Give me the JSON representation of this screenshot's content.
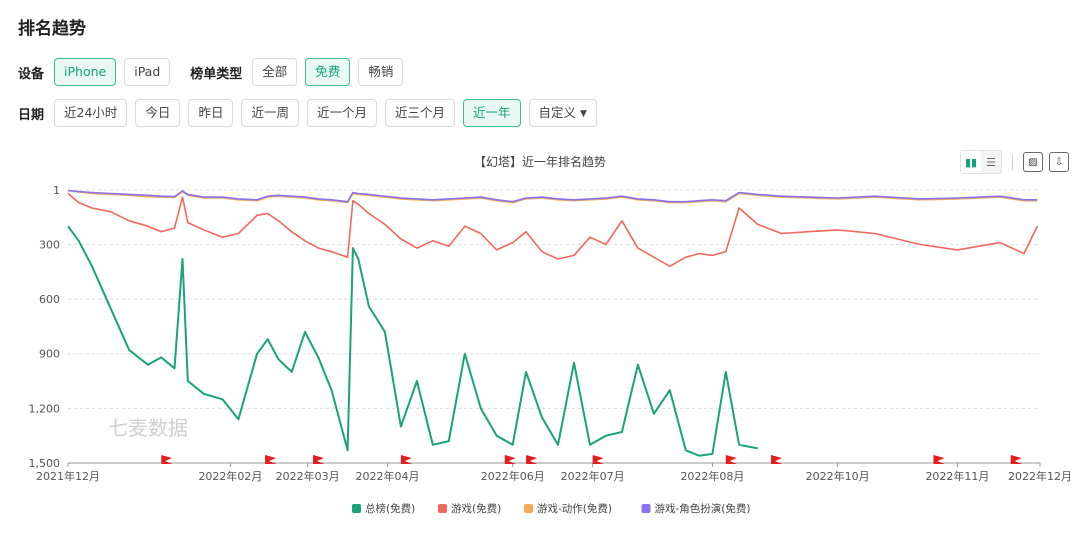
{
  "header": {
    "title": "排名趋势"
  },
  "device": {
    "label": "设备",
    "options": [
      "iPhone",
      "iPad"
    ],
    "selected": "iPhone"
  },
  "chart_type": {
    "label": "榜单类型",
    "options": [
      "全部",
      "免费",
      "畅销"
    ],
    "selected": "免费"
  },
  "date": {
    "label": "日期",
    "options": [
      "近24小时",
      "今日",
      "昨日",
      "近一周",
      "近一个月",
      "近三个月",
      "近一年",
      "自定义"
    ],
    "selected": "近一年"
  },
  "watermark": "七麦数据",
  "colors": {
    "accent": "#16a37b",
    "total": "#1aa37a",
    "game": "#f0695f",
    "action": "#f5aa5a",
    "rpg": "#8a72ee"
  },
  "chart_data": {
    "type": "line",
    "title": "【幻塔】近一年排名趋势",
    "x_ticks": [
      "2021年12月",
      "2022年02月",
      "2022年03月",
      "2022年04月",
      "2022年06月",
      "2022年07月",
      "2022年08月",
      "2022年10月",
      "2022年11月",
      "2022年12月"
    ],
    "y_ticks": [
      "1",
      "300",
      "600",
      "900",
      "1,200",
      "1,500"
    ],
    "ylim": [
      1500,
      1
    ],
    "y_inverted": true,
    "grid": true,
    "legend_position": "bottom",
    "markers": "red flags along the x-axis",
    "x": [
      "2021-12-16",
      "2021-12-20",
      "2021-12-25",
      "2022-01-01",
      "2022-01-08",
      "2022-01-15",
      "2022-01-20",
      "2022-01-25",
      "2022-01-28",
      "2022-01-30",
      "2022-02-05",
      "2022-02-12",
      "2022-02-18",
      "2022-02-25",
      "2022-03-01",
      "2022-03-05",
      "2022-03-10",
      "2022-03-15",
      "2022-03-20",
      "2022-03-25",
      "2022-03-31",
      "2022-04-02",
      "2022-04-04",
      "2022-04-08",
      "2022-04-14",
      "2022-04-20",
      "2022-04-26",
      "2022-05-02",
      "2022-05-08",
      "2022-05-14",
      "2022-05-20",
      "2022-05-26",
      "2022-06-01",
      "2022-06-06",
      "2022-06-12",
      "2022-06-18",
      "2022-06-24",
      "2022-06-30",
      "2022-07-06",
      "2022-07-12",
      "2022-07-18",
      "2022-07-24",
      "2022-07-30",
      "2022-08-05",
      "2022-08-10",
      "2022-08-15",
      "2022-08-20",
      "2022-08-25",
      "2022-09-01",
      "2022-09-10",
      "2022-09-20",
      "2022-10-01",
      "2022-10-15",
      "2022-11-01",
      "2022-11-15",
      "2022-12-01",
      "2022-12-10",
      "2022-12-15"
    ],
    "series": [
      {
        "name": "总榜(免费)",
        "values": [
          200,
          280,
          420,
          650,
          880,
          960,
          920,
          980,
          380,
          1050,
          1120,
          1150,
          1260,
          900,
          820,
          930,
          1000,
          780,
          920,
          1100,
          1430,
          320,
          380,
          640,
          780,
          1300,
          1050,
          1400,
          1380,
          900,
          1200,
          1350,
          1400,
          1000,
          1250,
          1400,
          950,
          1400,
          1350,
          1330,
          960,
          1230,
          1100,
          1430,
          1460,
          1450,
          1000,
          1400,
          1420,
          null,
          null,
          null,
          null,
          null,
          null,
          null,
          null,
          null
        ]
      },
      {
        "name": "游戏(免费)",
        "values": [
          20,
          70,
          100,
          120,
          170,
          200,
          230,
          210,
          40,
          180,
          220,
          260,
          240,
          140,
          130,
          170,
          230,
          280,
          320,
          340,
          370,
          60,
          80,
          130,
          190,
          270,
          320,
          280,
          310,
          200,
          240,
          330,
          290,
          230,
          340,
          380,
          360,
          260,
          300,
          170,
          320,
          370,
          420,
          370,
          350,
          360,
          340,
          100,
          190,
          240,
          230,
          220,
          240,
          300,
          330,
          290,
          350,
          200
        ]
      },
      {
        "name": "游戏-动作(免费)",
        "values": [
          5,
          12,
          20,
          25,
          30,
          38,
          40,
          42,
          10,
          30,
          45,
          45,
          55,
          60,
          40,
          35,
          40,
          45,
          55,
          60,
          70,
          20,
          25,
          30,
          40,
          50,
          55,
          60,
          55,
          50,
          45,
          60,
          70,
          50,
          45,
          55,
          60,
          55,
          50,
          40,
          55,
          60,
          70,
          70,
          65,
          60,
          65,
          20,
          30,
          40,
          45,
          50,
          40,
          55,
          50,
          40,
          60,
          60
        ]
      },
      {
        "name": "游戏-角色扮演(免费)",
        "values": [
          3,
          10,
          15,
          20,
          25,
          30,
          35,
          37,
          6,
          25,
          40,
          40,
          50,
          55,
          35,
          30,
          35,
          40,
          50,
          55,
          65,
          15,
          20,
          25,
          35,
          45,
          50,
          55,
          50,
          45,
          40,
          55,
          65,
          45,
          40,
          50,
          55,
          50,
          45,
          35,
          50,
          55,
          65,
          65,
          60,
          55,
          60,
          15,
          25,
          35,
          40,
          45,
          35,
          50,
          45,
          35,
          55,
          55
        ]
      }
    ]
  }
}
